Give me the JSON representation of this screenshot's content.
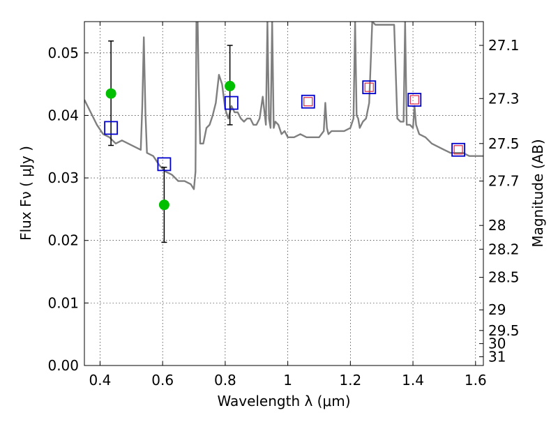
{
  "chart_data": {
    "type": "scatter",
    "title": "",
    "xlabel": "Wavelength  λ (μm)",
    "ylabel": "Flux  Fν  ( μJy )",
    "y2label": "Magnitude (AB)",
    "xlim": [
      0.35,
      1.625
    ],
    "ylim": [
      0.0,
      0.055
    ],
    "grid": true,
    "x_ticks": [
      0.4,
      0.6,
      0.8,
      1.0,
      1.2,
      1.4,
      1.6
    ],
    "x_tick_labels": [
      "0.4",
      "0.6",
      "0.8",
      "1",
      "1.2",
      "1.4",
      "1.6"
    ],
    "y_ticks": [
      0.0,
      0.01,
      0.02,
      0.03,
      0.04,
      0.05
    ],
    "y_tick_labels": [
      "0.00",
      "0.01",
      "0.02",
      "0.03",
      "0.04",
      "0.05"
    ],
    "y2_tick_labels": [
      "27.1",
      "27.3",
      "27.5",
      "27.7",
      "28",
      "28.2",
      "28.5",
      "29",
      "29.5",
      "30",
      "31"
    ],
    "y2_tick_flux": [
      0.0512,
      0.0427,
      0.0355,
      0.0295,
      0.0224,
      0.0186,
      0.0141,
      0.0089,
      0.0056,
      0.0035,
      0.0014
    ],
    "colors": {
      "spectrum": "#7f7f7f",
      "observed": "#00bf00",
      "model_box": "#0000cc",
      "inner_box": "#dd2244",
      "errorbar": "#000000"
    },
    "series": [
      {
        "kind": "line",
        "x": [
          0.35,
          0.37,
          0.39,
          0.41,
          0.43,
          0.45,
          0.47,
          0.49,
          0.51,
          0.53,
          0.535,
          0.54,
          0.545,
          0.55,
          0.57,
          0.59,
          0.61,
          0.63,
          0.65,
          0.67,
          0.69,
          0.7,
          0.705,
          0.708,
          0.712,
          0.715,
          0.72,
          0.73,
          0.74,
          0.75,
          0.76,
          0.77,
          0.78,
          0.79,
          0.8,
          0.81,
          0.82,
          0.83,
          0.84,
          0.85,
          0.86,
          0.87,
          0.88,
          0.89,
          0.9,
          0.91,
          0.92,
          0.93,
          0.935,
          0.94,
          0.945,
          0.95,
          0.955,
          0.96,
          0.97,
          0.98,
          0.99,
          1.0,
          1.02,
          1.04,
          1.06,
          1.08,
          1.1,
          1.115,
          1.12,
          1.125,
          1.13,
          1.14,
          1.16,
          1.18,
          1.2,
          1.21,
          1.215,
          1.22,
          1.225,
          1.23,
          1.24,
          1.25,
          1.26,
          1.27,
          1.28,
          1.29,
          1.3,
          1.31,
          1.32,
          1.33,
          1.34,
          1.35,
          1.36,
          1.37,
          1.375,
          1.38,
          1.39,
          1.4,
          1.405,
          1.41,
          1.42,
          1.44,
          1.46,
          1.48,
          1.5,
          1.52,
          1.54,
          1.56,
          1.58,
          1.6,
          1.625
        ],
        "y": [
          0.0425,
          0.0405,
          0.0385,
          0.037,
          0.0365,
          0.0355,
          0.036,
          0.0355,
          0.035,
          0.0345,
          0.0415,
          0.0525,
          0.0405,
          0.034,
          0.0335,
          0.032,
          0.031,
          0.0305,
          0.0295,
          0.0295,
          0.029,
          0.0282,
          0.031,
          0.055,
          0.055,
          0.046,
          0.0355,
          0.0355,
          0.038,
          0.0385,
          0.04,
          0.042,
          0.0465,
          0.045,
          0.041,
          0.0395,
          0.0415,
          0.0405,
          0.0405,
          0.0395,
          0.039,
          0.0395,
          0.0395,
          0.0385,
          0.0385,
          0.0395,
          0.043,
          0.0385,
          0.055,
          0.0395,
          0.038,
          0.055,
          0.038,
          0.039,
          0.0385,
          0.037,
          0.0375,
          0.0365,
          0.0365,
          0.037,
          0.0365,
          0.0365,
          0.0365,
          0.0375,
          0.042,
          0.038,
          0.037,
          0.0375,
          0.0375,
          0.0375,
          0.038,
          0.0395,
          0.055,
          0.04,
          0.0395,
          0.038,
          0.039,
          0.0395,
          0.042,
          0.055,
          0.0545,
          0.0545,
          0.0545,
          0.0545,
          0.0545,
          0.0545,
          0.0545,
          0.0395,
          0.039,
          0.039,
          0.055,
          0.0385,
          0.0385,
          0.038,
          0.0415,
          0.0385,
          0.037,
          0.0365,
          0.0355,
          0.035,
          0.0345,
          0.034,
          0.034,
          0.034,
          0.0335,
          0.0335,
          0.0335
        ]
      },
      {
        "kind": "points",
        "x": [
          0.435,
          0.605,
          0.815
        ],
        "y": [
          0.0435,
          0.0257,
          0.0447
        ]
      },
      {
        "kind": "errorbars",
        "x": [
          0.435,
          0.605,
          0.815
        ],
        "y": [
          0.0435,
          0.0257,
          0.0447
        ],
        "yerr_low": [
          0.0352,
          0.0197,
          0.0385
        ],
        "yerr_high": [
          0.0519,
          0.0317,
          0.0512
        ]
      },
      {
        "kind": "boxes",
        "x": [
          0.435,
          0.605,
          0.82,
          1.065,
          1.26,
          1.405,
          1.545
        ],
        "y": [
          0.038,
          0.0322,
          0.042,
          0.0422,
          0.0445,
          0.0425,
          0.0345
        ]
      },
      {
        "kind": "inner-boxes",
        "x": [
          1.065,
          1.26,
          1.405,
          1.545
        ],
        "y": [
          0.0422,
          0.0445,
          0.0425,
          0.0345
        ]
      }
    ]
  }
}
